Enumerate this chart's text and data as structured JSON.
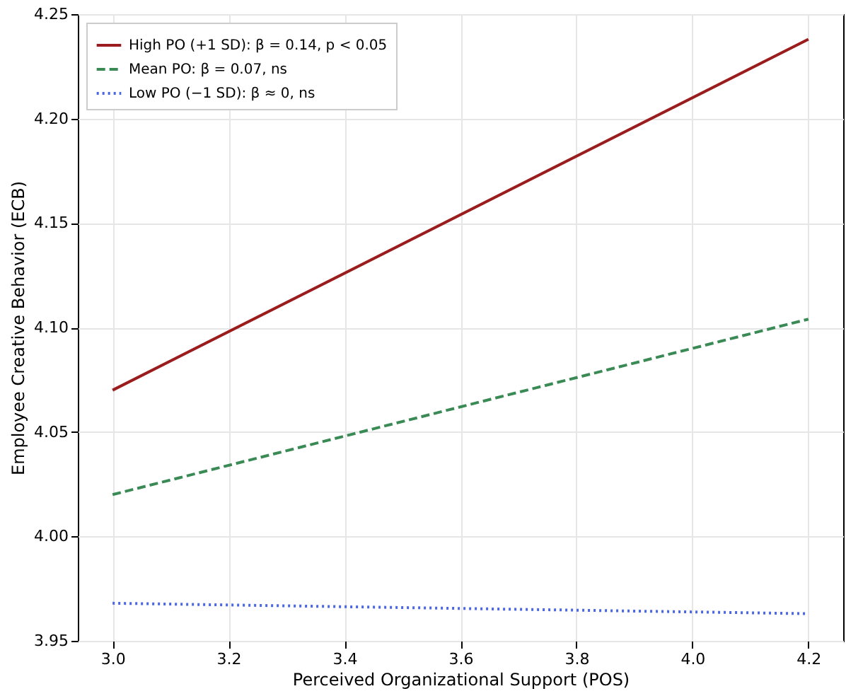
{
  "chart_data": {
    "type": "line",
    "xlabel": "Perceived Organizational Support (POS)",
    "ylabel": "Employee Creative Behavior (ECB)",
    "x": [
      3.0,
      4.2
    ],
    "series": [
      {
        "name": "High PO (+1 SD): β = 0.14, p < 0.05",
        "color": "#9b1c1c",
        "line_style": "solid",
        "values": [
          4.07,
          4.238
        ]
      },
      {
        "name": "Mean PO: β = 0.07, ns",
        "color": "#3a8a55",
        "line_style": "dashed",
        "values": [
          4.02,
          4.104
        ]
      },
      {
        "name": "Low PO (−1 SD): β ≈ 0, ns",
        "color": "#4a66e0",
        "line_style": "dotted",
        "values": [
          3.968,
          3.963
        ]
      }
    ],
    "xlim": [
      2.94,
      4.26
    ],
    "xticks": [
      {
        "value": 3,
        "label": "3.0"
      },
      3.2,
      3.4,
      3.6,
      3.8,
      {
        "value": 4,
        "label": "4.0"
      },
      4.2
    ],
    "ylim": [
      3.95,
      4.25
    ],
    "yticks": [
      3.95,
      {
        "value": 4,
        "label": "4.00"
      },
      4.05,
      {
        "value": 4.1,
        "label": "4.10"
      },
      4.15,
      {
        "value": 4.2,
        "label": "4.20"
      },
      4.25
    ],
    "grid": true,
    "legend": "top left",
    "marker": "none"
  }
}
